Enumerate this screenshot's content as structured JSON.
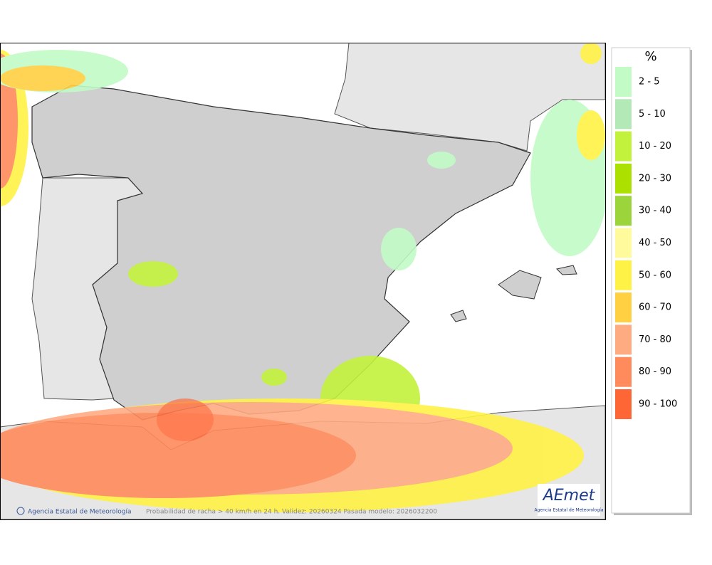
{
  "legend": {
    "title": "%",
    "items": [
      {
        "label": "2 - 5",
        "color": "#c2fbc6"
      },
      {
        "label": "5 - 10",
        "color": "#b3e9b7"
      },
      {
        "label": "10 - 20",
        "color": "#c3f23c"
      },
      {
        "label": "20 - 30",
        "color": "#ace000"
      },
      {
        "label": "30 - 40",
        "color": "#9cd43c"
      },
      {
        "label": "40 - 50",
        "color": "#fffb9c"
      },
      {
        "label": "50 - 60",
        "color": "#fff246"
      },
      {
        "label": "60 - 70",
        "color": "#ffd042"
      },
      {
        "label": "70 - 80",
        "color": "#ffab82"
      },
      {
        "label": "80 - 90",
        "color": "#ff8b5c"
      },
      {
        "label": "90 - 100",
        "color": "#ff6636"
      }
    ]
  },
  "footer": {
    "agency": "Agencia Estatal de Meteorología",
    "caption": "Probabilidad de racha > 40 km/h en 24 h. Validez: 20260324 Pasada modelo: 2026032200"
  },
  "logo": {
    "text": "AEmet",
    "subtitle": "Agencia Estatal de Meteorología"
  }
}
